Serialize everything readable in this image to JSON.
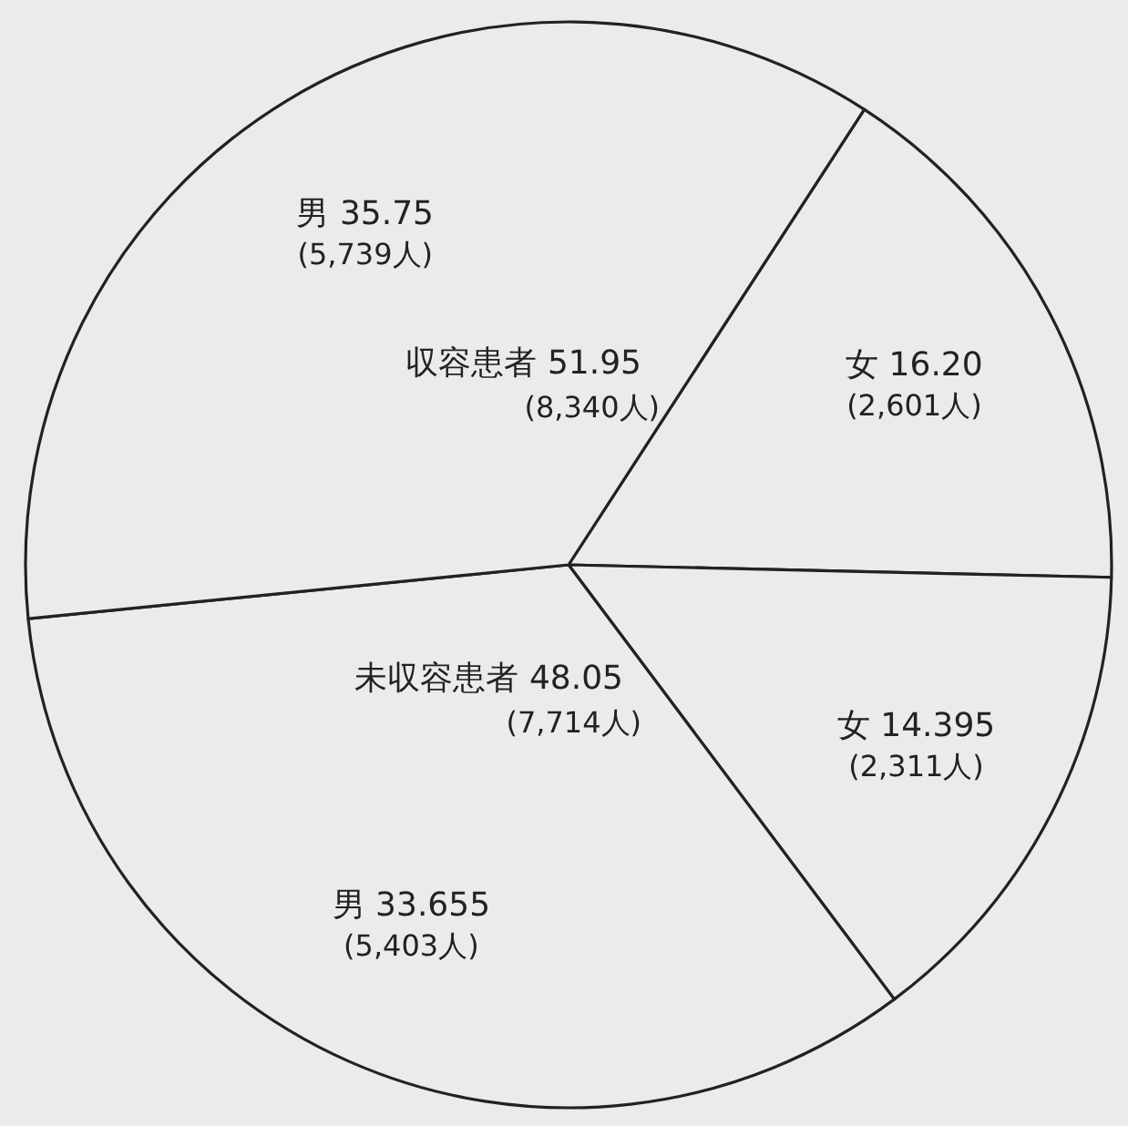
{
  "chart_data": {
    "type": "pie",
    "categories": [
      "女",
      "女",
      "男",
      "男"
    ],
    "values": [
      16.2,
      14.395,
      33.655,
      35.75
    ],
    "value_labels": [
      "16.20 (2,601人)",
      "14.395 (2,311人)",
      "33.655 (5,403人)",
      "35.75 (5,739人)"
    ],
    "colors": [
      "#ebebeb",
      "#ebebeb",
      "#ebebeb",
      "#ebebeb"
    ],
    "annotations": [
      "収容患者 51.95 (8,340人)",
      "未収容患者 48.05 (7,714人)"
    ]
  }
}
